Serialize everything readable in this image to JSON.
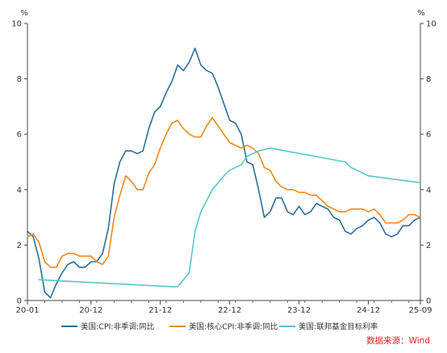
{
  "chart_data": {
    "type": "line",
    "unit_left": "%",
    "unit_right": "%",
    "ylim": [
      0,
      10
    ],
    "yticks": [
      0,
      2,
      4,
      6,
      8,
      10
    ],
    "x_tick_labels": [
      "20-01",
      "20-12",
      "21-12",
      "22-12",
      "23-12",
      "24-12",
      "25-09"
    ],
    "xlim": [
      "2020-01",
      "2025-09"
    ],
    "grid": false,
    "legend_position": "bottom",
    "source_note": "数据来源：Wind",
    "colors": {
      "cpi": "#2a6f97",
      "core_cpi": "#f0891a",
      "fed_rate": "#5bc5c8"
    },
    "series": [
      {
        "key": "cpi",
        "name": "美国:CPI:非季调:同比",
        "x": [
          "2020-01",
          "2020-02",
          "2020-03",
          "2020-04",
          "2020-05",
          "2020-06",
          "2020-07",
          "2020-08",
          "2020-09",
          "2020-10",
          "2020-11",
          "2020-12",
          "2021-01",
          "2021-02",
          "2021-03",
          "2021-04",
          "2021-05",
          "2021-06",
          "2021-07",
          "2021-08",
          "2021-09",
          "2021-10",
          "2021-11",
          "2021-12",
          "2022-01",
          "2022-02",
          "2022-03",
          "2022-04",
          "2022-05",
          "2022-06",
          "2022-07",
          "2022-08",
          "2022-09",
          "2022-10",
          "2022-11",
          "2022-12",
          "2023-01",
          "2023-02",
          "2023-03",
          "2023-04",
          "2023-05",
          "2023-06",
          "2023-07",
          "2023-08",
          "2023-09",
          "2023-10",
          "2023-11",
          "2023-12",
          "2024-01",
          "2024-02",
          "2024-03",
          "2024-04",
          "2024-05",
          "2024-06",
          "2024-07",
          "2024-08",
          "2024-09",
          "2024-10",
          "2024-11",
          "2024-12",
          "2025-01",
          "2025-02",
          "2025-03",
          "2025-04",
          "2025-05",
          "2025-06",
          "2025-07",
          "2025-08",
          "2025-09"
        ],
        "values": [
          2.5,
          2.3,
          1.5,
          0.3,
          0.1,
          0.6,
          1.0,
          1.3,
          1.4,
          1.2,
          1.2,
          1.4,
          1.4,
          1.7,
          2.6,
          4.2,
          5.0,
          5.4,
          5.4,
          5.3,
          5.4,
          6.2,
          6.8,
          7.0,
          7.5,
          7.9,
          8.5,
          8.3,
          8.6,
          9.1,
          8.5,
          8.3,
          8.2,
          7.7,
          7.1,
          6.5,
          6.4,
          6.0,
          5.0,
          4.9,
          4.0,
          3.0,
          3.2,
          3.7,
          3.7,
          3.2,
          3.1,
          3.4,
          3.1,
          3.2,
          3.5,
          3.4,
          3.3,
          3.0,
          2.9,
          2.5,
          2.4,
          2.6,
          2.7,
          2.9,
          3.0,
          2.8,
          2.4,
          2.3,
          2.4,
          2.7,
          2.7,
          2.9,
          3.0
        ]
      },
      {
        "key": "core_cpi",
        "name": "美国:核心CPI:非季调:同比",
        "x": [
          "2020-01",
          "2020-02",
          "2020-03",
          "2020-04",
          "2020-05",
          "2020-06",
          "2020-07",
          "2020-08",
          "2020-09",
          "2020-10",
          "2020-11",
          "2020-12",
          "2021-01",
          "2021-02",
          "2021-03",
          "2021-04",
          "2021-05",
          "2021-06",
          "2021-07",
          "2021-08",
          "2021-09",
          "2021-10",
          "2021-11",
          "2021-12",
          "2022-01",
          "2022-02",
          "2022-03",
          "2022-04",
          "2022-05",
          "2022-06",
          "2022-07",
          "2022-08",
          "2022-09",
          "2022-10",
          "2022-11",
          "2022-12",
          "2023-01",
          "2023-02",
          "2023-03",
          "2023-04",
          "2023-05",
          "2023-06",
          "2023-07",
          "2023-08",
          "2023-09",
          "2023-10",
          "2023-11",
          "2023-12",
          "2024-01",
          "2024-02",
          "2024-03",
          "2024-04",
          "2024-05",
          "2024-06",
          "2024-07",
          "2024-08",
          "2024-09",
          "2024-10",
          "2024-11",
          "2024-12",
          "2025-01",
          "2025-02",
          "2025-03",
          "2025-04",
          "2025-05",
          "2025-06",
          "2025-07",
          "2025-08",
          "2025-09"
        ],
        "values": [
          2.3,
          2.4,
          2.1,
          1.4,
          1.2,
          1.2,
          1.6,
          1.7,
          1.7,
          1.6,
          1.6,
          1.6,
          1.4,
          1.3,
          1.6,
          3.0,
          3.8,
          4.5,
          4.3,
          4.0,
          4.0,
          4.6,
          4.9,
          5.5,
          6.0,
          6.4,
          6.5,
          6.2,
          6.0,
          5.9,
          5.9,
          6.3,
          6.6,
          6.3,
          6.0,
          5.7,
          5.6,
          5.5,
          5.6,
          5.5,
          5.3,
          4.8,
          4.7,
          4.3,
          4.1,
          4.0,
          4.0,
          3.9,
          3.9,
          3.8,
          3.8,
          3.6,
          3.4,
          3.3,
          3.2,
          3.2,
          3.3,
          3.3,
          3.3,
          3.2,
          3.3,
          3.1,
          2.8,
          2.8,
          2.8,
          2.9,
          3.1,
          3.1,
          3.0
        ]
      },
      {
        "key": "fed_rate",
        "name": "美国:联邦基金目标利率",
        "x": [
          "2020-03",
          "2022-02",
          "2022-03",
          "2022-05",
          "2022-06",
          "2022-07",
          "2022-09",
          "2022-11",
          "2022-12",
          "2023-02",
          "2023-03",
          "2023-05",
          "2023-07",
          "2024-08",
          "2024-09",
          "2024-11",
          "2024-12",
          "2025-09"
        ],
        "values": [
          0.75,
          0.5,
          0.5,
          1.0,
          2.5,
          3.2,
          4.0,
          4.5,
          4.7,
          4.9,
          5.2,
          5.4,
          5.5,
          5.0,
          4.8,
          4.6,
          4.5,
          4.25
        ]
      }
    ]
  }
}
